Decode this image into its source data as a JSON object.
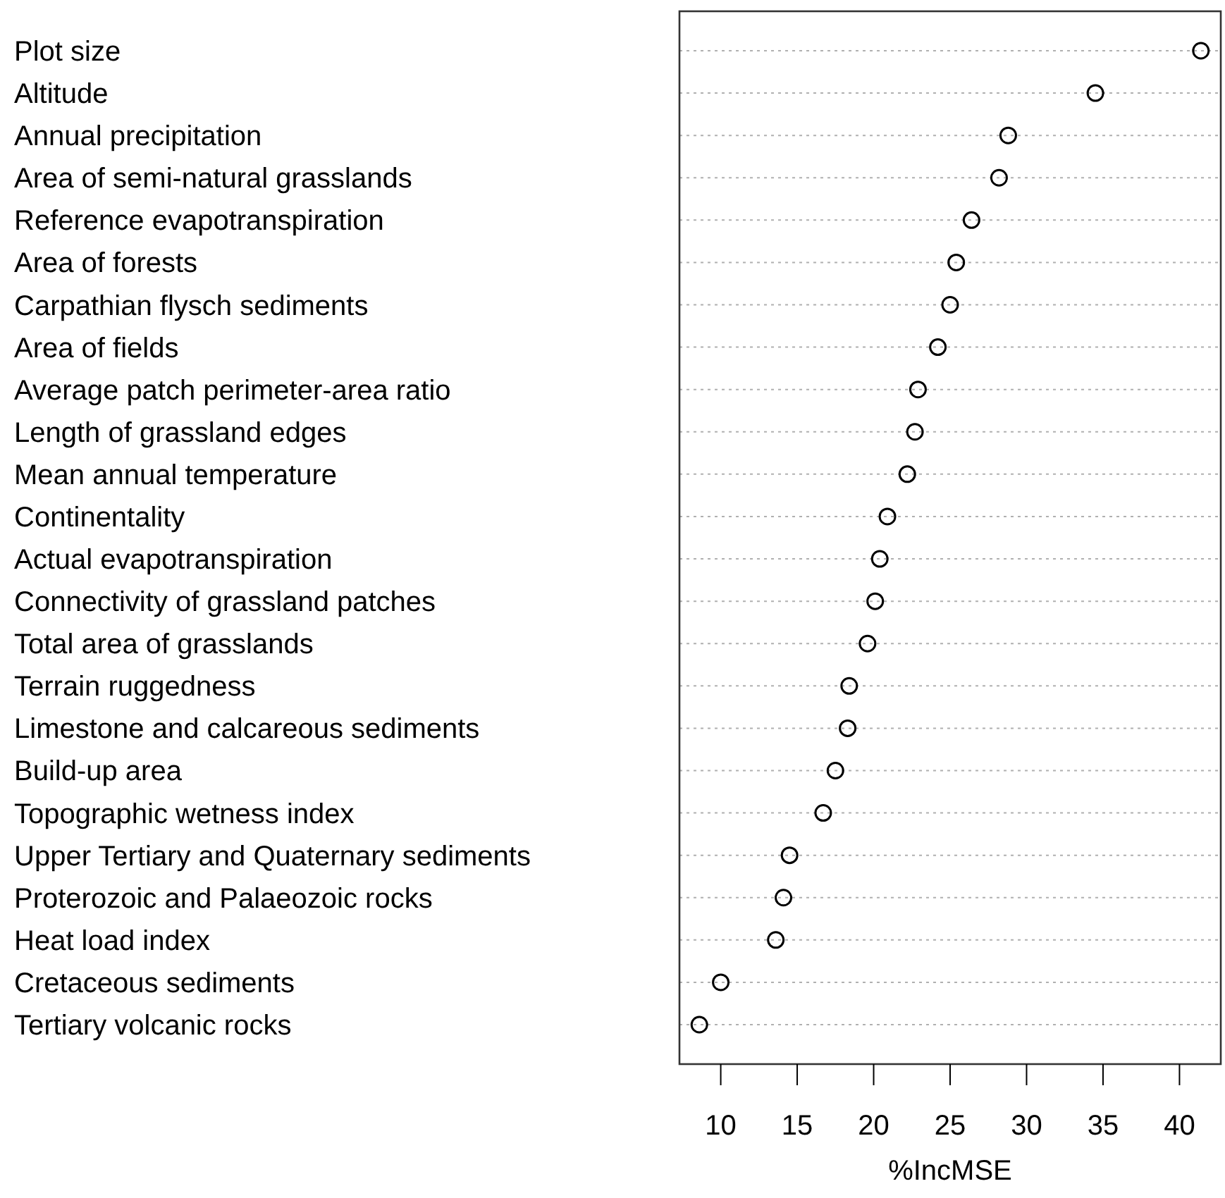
{
  "chart_data": {
    "type": "scatter",
    "xlabel": "%IncMSE",
    "categories": [
      "Plot size",
      "Altitude",
      "Annual precipitation",
      "Area of semi-natural grasslands",
      "Reference evapotranspiration",
      "Area of forests",
      "Carpathian flysch sediments",
      "Area of fields",
      "Average patch perimeter-area ratio",
      "Length of grassland edges",
      "Mean annual temperature",
      "Continentality",
      "Actual evapotranspiration",
      "Connectivity of grassland patches",
      "Total area of grasslands",
      "Terrain ruggedness",
      "Limestone and calcareous sediments",
      "Build-up area",
      "Topographic wetness index",
      "Upper Tertiary and Quaternary sediments",
      "Proterozoic and Palaeozoic rocks",
      "Heat load index",
      "Cretaceous sediments",
      "Tertiary volcanic rocks"
    ],
    "values": [
      41.4,
      34.5,
      28.8,
      28.2,
      26.4,
      25.4,
      25.0,
      24.2,
      22.9,
      22.7,
      22.2,
      20.9,
      20.4,
      20.1,
      19.6,
      18.4,
      18.3,
      17.5,
      16.7,
      14.5,
      14.1,
      13.6,
      10.0,
      8.6
    ],
    "orientation": "horizontal",
    "color": "#000000",
    "marker": "circle",
    "grid": "y",
    "xlim": [
      7.3,
      42.7
    ],
    "xticks": [
      10,
      15,
      20,
      25,
      30,
      35,
      40
    ]
  }
}
